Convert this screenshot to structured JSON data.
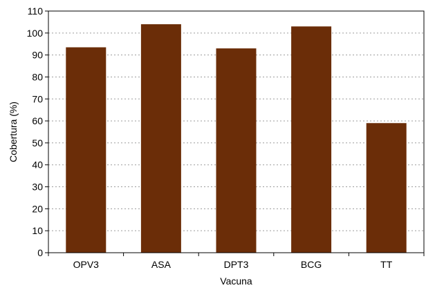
{
  "chart_data": {
    "type": "bar",
    "categories": [
      "OPV3",
      "ASA",
      "DPT3",
      "BCG",
      "TT"
    ],
    "values": [
      93.5,
      104,
      93,
      103,
      59
    ],
    "xlabel": "Vacuna",
    "ylabel": "Cobertura (%)",
    "ylim": [
      0,
      110
    ],
    "yticks": [
      0,
      10,
      20,
      30,
      40,
      50,
      60,
      70,
      80,
      90,
      100,
      110
    ],
    "grid": "horizontal dotted",
    "legend": "none",
    "bar_color": "#6b2d08"
  }
}
